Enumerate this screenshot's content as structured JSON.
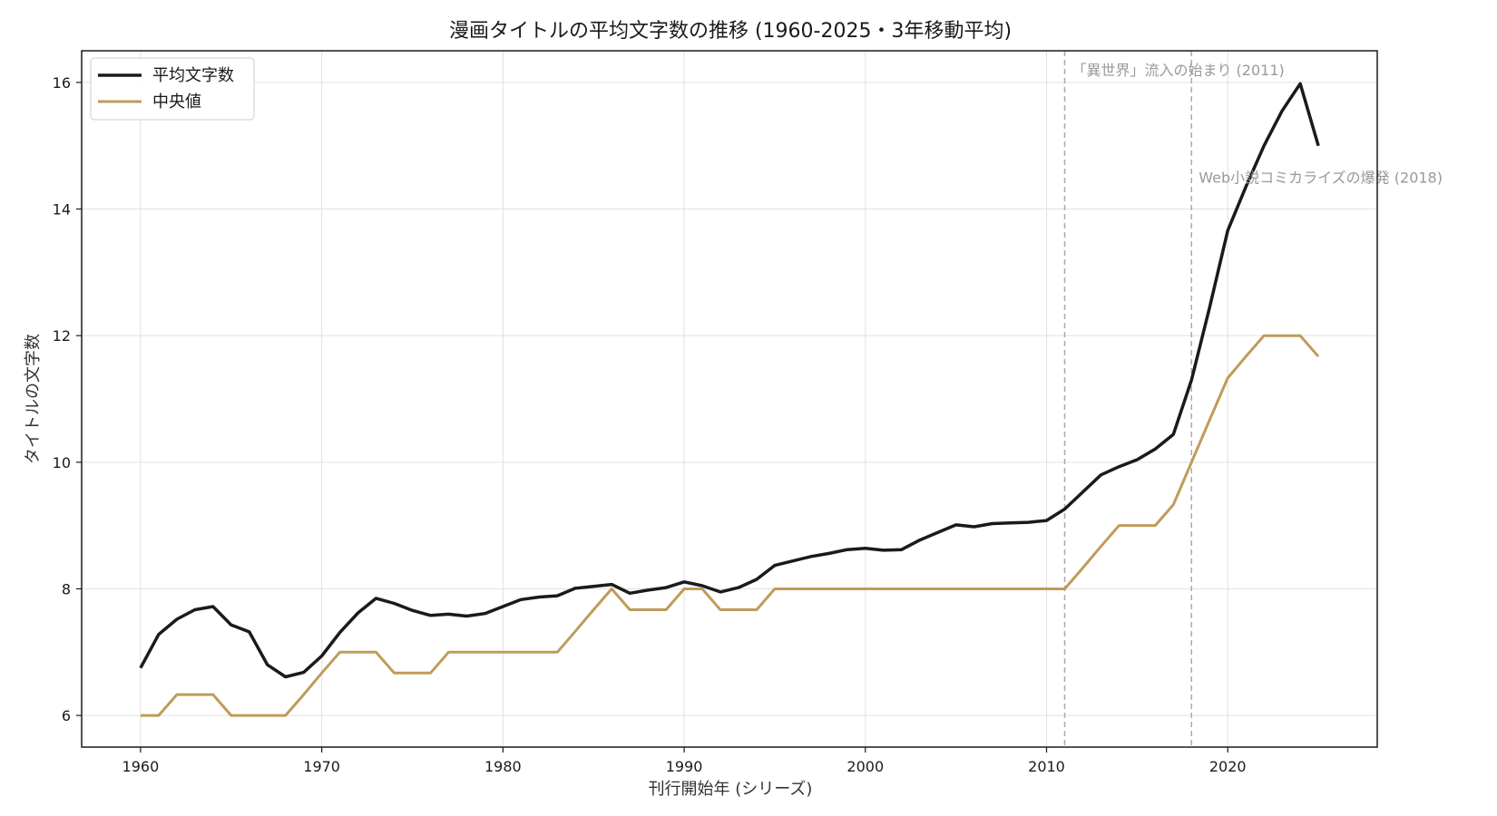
{
  "chart_data": {
    "type": "line",
    "title": "漫画タイトルの平均文字数の推移 (1960-2025・3年移動平均)",
    "xlabel": "刊行開始年 (シリーズ)",
    "ylabel": "タイトルの文字数",
    "xlim": [
      1956.75,
      2028.25
    ],
    "ylim": [
      5.5,
      16.5
    ],
    "xticks": [
      1960,
      1970,
      1980,
      1990,
      2000,
      2010,
      2020
    ],
    "yticks": [
      6,
      8,
      10,
      12,
      14,
      16
    ],
    "grid": true,
    "legend_position": "top-left",
    "x": [
      1960,
      1961,
      1962,
      1963,
      1964,
      1965,
      1966,
      1967,
      1968,
      1969,
      1970,
      1971,
      1972,
      1973,
      1974,
      1975,
      1976,
      1977,
      1978,
      1979,
      1980,
      1981,
      1982,
      1983,
      1984,
      1985,
      1986,
      1987,
      1988,
      1989,
      1990,
      1991,
      1992,
      1993,
      1994,
      1995,
      1996,
      1997,
      1998,
      1999,
      2000,
      2001,
      2002,
      2003,
      2004,
      2005,
      2006,
      2007,
      2008,
      2009,
      2010,
      2011,
      2012,
      2013,
      2014,
      2015,
      2016,
      2017,
      2018,
      2019,
      2020,
      2021,
      2022,
      2023,
      2024,
      2025
    ],
    "series": [
      {
        "name": "平均文字数",
        "color": "#1a1a1a",
        "width": 3.5,
        "values": [
          6.75,
          7.28,
          7.52,
          7.67,
          7.72,
          7.43,
          7.32,
          6.8,
          6.61,
          6.68,
          6.94,
          7.31,
          7.62,
          7.85,
          7.77,
          7.66,
          7.58,
          7.6,
          7.57,
          7.61,
          7.72,
          7.83,
          7.87,
          7.89,
          8.01,
          8.04,
          8.07,
          7.93,
          7.98,
          8.02,
          8.11,
          8.05,
          7.95,
          8.02,
          8.15,
          8.37,
          8.44,
          8.51,
          8.56,
          8.62,
          8.64,
          8.61,
          8.62,
          8.77,
          8.89,
          9.01,
          8.98,
          9.03,
          9.04,
          9.05,
          9.08,
          9.26,
          9.53,
          9.8,
          9.93,
          10.04,
          10.21,
          10.44,
          11.3,
          12.45,
          13.66,
          14.35,
          15.0,
          15.55,
          15.98,
          15.0
        ]
      },
      {
        "name": "中央値",
        "color": "#c09b5a",
        "width": 3,
        "values": [
          6.0,
          6.0,
          6.33,
          6.33,
          6.33,
          6.0,
          6.0,
          6.0,
          6.0,
          6.33,
          6.67,
          7.0,
          7.0,
          7.0,
          6.67,
          6.67,
          6.67,
          7.0,
          7.0,
          7.0,
          7.0,
          7.0,
          7.0,
          7.0,
          7.33,
          7.67,
          8.0,
          7.67,
          7.67,
          7.67,
          8.0,
          8.0,
          7.67,
          7.67,
          7.67,
          8.0,
          8.0,
          8.0,
          8.0,
          8.0,
          8.0,
          8.0,
          8.0,
          8.0,
          8.0,
          8.0,
          8.0,
          8.0,
          8.0,
          8.0,
          8.0,
          8.0,
          8.33,
          8.67,
          9.0,
          9.0,
          9.0,
          9.33,
          10.0,
          10.67,
          11.33,
          11.67,
          12.0,
          12.0,
          12.0,
          11.67
        ]
      }
    ],
    "annotations": [
      {
        "x": 2011,
        "text": "「異世界」流入の始まり (2011)",
        "text_y": 16.2
      },
      {
        "x": 2018,
        "text": "Web小説コミカライズの爆発 (2018)",
        "text_y": 14.5
      }
    ],
    "annotation_color": "#999999",
    "grid_color": "#e0e0e0"
  }
}
